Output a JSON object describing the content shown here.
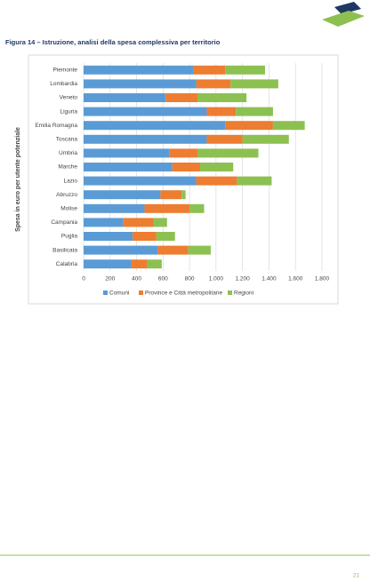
{
  "caption": "Figura 14 – Istruzione, analisi della spesa complessiva per territorio",
  "page_number": "21",
  "chart_data": {
    "type": "stacked-bar-horizontal",
    "y_label": "Spesa in euro per utente potenziale",
    "categories": [
      "Piemonte",
      "Lombardia",
      "Veneto",
      "Liguria",
      "Emilia Romagna",
      "Toscana",
      "Umbria",
      "Marche",
      "Lazio",
      "Abruzzo",
      "Molise",
      "Campania",
      "Puglia",
      "Basilicata",
      "Calabria"
    ],
    "series": [
      {
        "name": "Comuni",
        "color": "#5b9bd5",
        "values": [
          830,
          850,
          620,
          930,
          1070,
          930,
          650,
          670,
          850,
          580,
          460,
          300,
          370,
          560,
          360
        ]
      },
      {
        "name": "Province e Città metropolitane",
        "color": "#ed7d31",
        "values": [
          240,
          260,
          240,
          220,
          360,
          270,
          210,
          210,
          310,
          160,
          340,
          230,
          180,
          230,
          120
        ]
      },
      {
        "name": "Regioni",
        "color": "#8cc152",
        "values": [
          300,
          360,
          370,
          280,
          240,
          350,
          460,
          250,
          260,
          30,
          110,
          100,
          140,
          170,
          110
        ]
      }
    ],
    "xlim": [
      0,
      1800
    ],
    "xticks": [
      0,
      200,
      400,
      600,
      800,
      {
        "value": 1000,
        "label": "1.000"
      },
      {
        "value": 1200,
        "label": "1.200"
      },
      {
        "value": 1400,
        "label": "1.400"
      },
      {
        "value": 1600,
        "label": "1.600"
      },
      {
        "value": 1800,
        "label": "1.800"
      }
    ],
    "grid": true,
    "legend": "bottom"
  }
}
